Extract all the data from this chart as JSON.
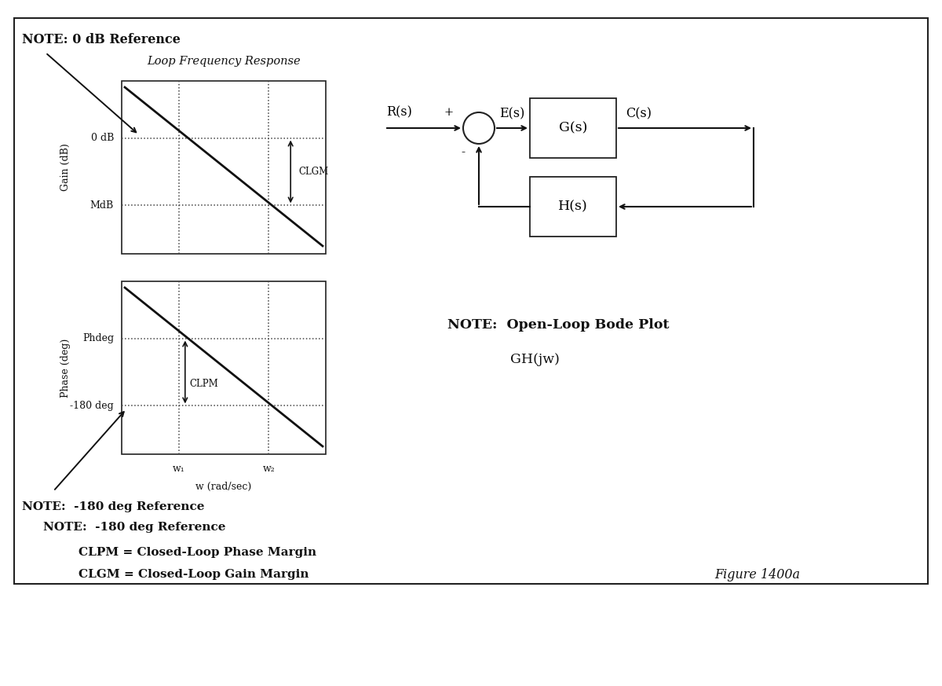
{
  "bg_color": "#ffffff",
  "title_note_0db": "NOTE: 0 dB Reference",
  "title_loop": "Loop Frequency Response",
  "gain_ylabel": "Gain (dB)",
  "phase_ylabel": "Phase (deg)",
  "xlabel": "w (rad/sec)",
  "w1_label": "w₁",
  "w2_label": "w₂",
  "odb_label": "0 dB",
  "mdb_label": "MdB",
  "phdeg_label": "Phdeg",
  "neg180_label": "-180 deg",
  "clgm_label": "CLGM",
  "clpm_label": "CLPM",
  "note_bode": "NOTE:  Open-Loop Bode Plot",
  "gh_label": "GH(jw)",
  "clpm_def": "CLPM = Closed-Loop Phase Margin",
  "clgm_def": "CLGM = Closed-Loop Gain Margin",
  "note_neg180": "NOTE:  -180 deg Reference",
  "figure_label": "Figure 1400a",
  "Rs_label": "R(s)",
  "Es_label": "E(s)",
  "Gs_label": "G(s)",
  "Cs_label": "C(s)",
  "Hs_label": "H(s)",
  "plus_label": "+",
  "minus_label": "-",
  "figwidth": 12.0,
  "figheight": 8.73,
  "dpi": 100
}
